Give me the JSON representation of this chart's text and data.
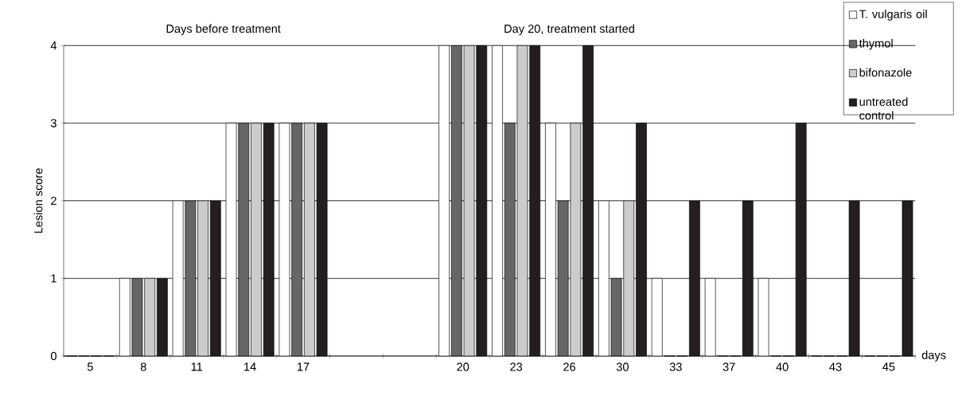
{
  "chart_data": {
    "type": "bar",
    "ylabel": "Lesion score",
    "xlabel": "days",
    "annotations": [
      "Days before treatment",
      "Day 20, treatment started"
    ],
    "categories": [
      "5",
      "8",
      "11",
      "14",
      "17",
      null,
      null,
      "20",
      "23",
      "26",
      "30",
      "33",
      "37",
      "40",
      "43",
      "45"
    ],
    "series": [
      {
        "name": "T. vulgaris oil",
        "color": "#ffffff",
        "values": [
          0,
          1,
          2,
          3,
          3,
          null,
          null,
          4,
          4,
          3,
          2,
          1,
          1,
          1,
          0,
          0
        ]
      },
      {
        "name": "thymol",
        "color": "#666666",
        "values": [
          0,
          1,
          2,
          3,
          3,
          null,
          null,
          4,
          3,
          2,
          1,
          0,
          0,
          0,
          0,
          0
        ]
      },
      {
        "name": "bifonazole",
        "color": "#cccccc",
        "values": [
          0,
          1,
          2,
          3,
          3,
          null,
          null,
          4,
          4,
          3,
          2,
          0,
          0,
          0,
          0,
          0
        ]
      },
      {
        "name": "untreated control",
        "color": "#231f20",
        "values": [
          0,
          1,
          2,
          3,
          3,
          null,
          null,
          4,
          4,
          4,
          3,
          2,
          2,
          3,
          2,
          2
        ]
      }
    ],
    "ylim": [
      0,
      4
    ],
    "yticks": [
      0,
      1,
      2,
      3,
      4
    ],
    "grid": "y",
    "legend": "top right"
  }
}
